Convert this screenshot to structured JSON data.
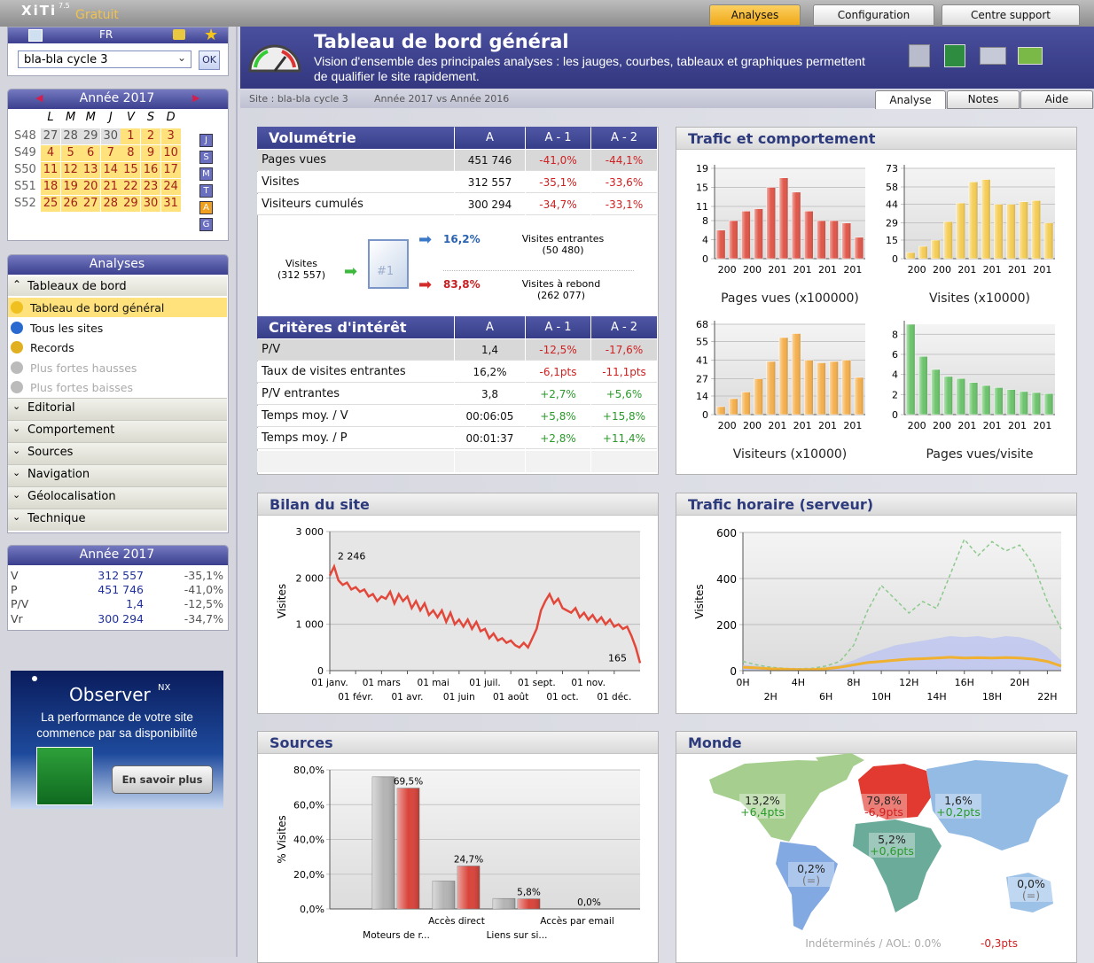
{
  "topbar": {
    "logo": "XiTi",
    "version": "7.5",
    "edition": "Gratuit",
    "tabs": [
      "Analyses",
      "Configuration",
      "Centre support"
    ]
  },
  "site_selector": {
    "lang": "FR",
    "site": "bla-bla cycle 3",
    "button": "OK"
  },
  "calendar": {
    "title": "Année 2017",
    "days": [
      "L",
      "M",
      "M",
      "J",
      "V",
      "S",
      "D"
    ],
    "weeks": [
      {
        "label": "S48",
        "days": [
          27,
          28,
          29,
          30,
          1,
          2,
          3
        ]
      },
      {
        "label": "S49",
        "days": [
          4,
          5,
          6,
          7,
          8,
          9,
          10
        ]
      },
      {
        "label": "S50",
        "days": [
          11,
          12,
          13,
          14,
          15,
          16,
          17
        ]
      },
      {
        "label": "S51",
        "days": [
          18,
          19,
          20,
          21,
          22,
          23,
          24
        ]
      },
      {
        "label": "S52",
        "days": [
          25,
          26,
          27,
          28,
          29,
          30,
          31
        ]
      }
    ],
    "periods": [
      "J",
      "S",
      "M",
      "T",
      "A",
      "G"
    ]
  },
  "menu": {
    "title": "Analyses",
    "open_section": "Tableaux de bord",
    "items": [
      "Tableau de bord général",
      "Tous les sites",
      "Records",
      "Plus fortes hausses",
      "Plus fortes baisses"
    ],
    "sections": [
      "Editorial",
      "Comportement",
      "Sources",
      "Navigation",
      "Géolocalisation",
      "Technique"
    ]
  },
  "summary": {
    "title": "Année 2017",
    "rows": [
      [
        "V",
        "312 557",
        "-35,1%"
      ],
      [
        "P",
        "451 746",
        "-41,0%"
      ],
      [
        "P/V",
        "1,4",
        "-12,5%"
      ],
      [
        "Vr",
        "300 294",
        "-34,7%"
      ]
    ]
  },
  "ad": {
    "brand": "Observer",
    "brand_sup": "NX",
    "text": "La performance de votre site commence par sa disponibilité",
    "button": "En savoir plus"
  },
  "header": {
    "title": "Tableau de bord général",
    "subtitle": "Vision d'ensemble des principales analyses : les jauges, courbes, tableaux et graphiques permettent de qualifier le site rapidement.",
    "site": "Site : bla-bla cycle 3",
    "period": "Année 2017 vs Année 2016",
    "tabs": [
      "Analyse",
      "Notes",
      "Aide"
    ]
  },
  "volumetrie": {
    "header": [
      "Volumétrie",
      "A",
      "A - 1",
      "A - 2"
    ],
    "rows": [
      [
        "Pages vues",
        "451 746",
        "-41,0%",
        "-44,1%"
      ],
      [
        "Visites",
        "312 557",
        "-35,1%",
        "-33,6%"
      ],
      [
        "Visiteurs cumulés",
        "300 294",
        "-34,7%",
        "-33,1%"
      ]
    ]
  },
  "flow": {
    "source": "Visites",
    "source_count": "(312 557)",
    "page": "#1",
    "entering_pct": "16,2%",
    "entering": "Visites entrantes",
    "entering_count": "(50 480)",
    "bounce_pct": "83,8%",
    "bounce": "Visites à rebond",
    "bounce_count": "(262 077)"
  },
  "criteres": {
    "header": [
      "Critères d'intérêt",
      "A",
      "A - 1",
      "A - 2"
    ],
    "rows": [
      [
        "P/V",
        "1,4",
        "-12,5%",
        "-17,6%"
      ],
      [
        "Taux de visites entrantes",
        "16,2%",
        "-6,1pts",
        "-11,1pts"
      ],
      [
        "P/V entrantes",
        "3,8",
        "+2,7%",
        "+5,6%"
      ],
      [
        "Temps moy. / V",
        "00:06:05",
        "+5,8%",
        "+15,8%"
      ],
      [
        "Temps moy. / P",
        "00:01:37",
        "+2,8%",
        "+11,4%"
      ]
    ]
  },
  "trafic": {
    "title": "Trafic et comportement",
    "charts": [
      {
        "type": "bar",
        "label": "Pages vues (x100000)",
        "color": "#e0574a",
        "xlabels": [
          "200",
          "200",
          "201",
          "201",
          "201",
          "201"
        ],
        "ylim": [
          0,
          19
        ],
        "yticks": [
          0,
          4,
          8,
          11,
          15,
          19
        ],
        "values": [
          6,
          8,
          10,
          10.5,
          15,
          17,
          14,
          10,
          8,
          8,
          7.5,
          4.5
        ]
      },
      {
        "type": "bar",
        "label": "Visites (x10000)",
        "color": "#f5cd55",
        "xlabels": [
          "200",
          "200",
          "201",
          "201",
          "201",
          "201"
        ],
        "ylim": [
          0,
          73
        ],
        "yticks": [
          0,
          15,
          29,
          44,
          58,
          73
        ],
        "values": [
          5,
          10,
          15,
          30,
          45,
          62,
          64,
          44,
          44,
          46,
          47,
          29
        ]
      },
      {
        "type": "bar",
        "label": "Visiteurs (x10000)",
        "color": "#f5b04e",
        "xlabels": [
          "200",
          "200",
          "201",
          "201",
          "201",
          "201"
        ],
        "ylim": [
          0,
          68
        ],
        "yticks": [
          0,
          14,
          27,
          41,
          55,
          68
        ],
        "values": [
          6,
          12,
          17,
          27,
          40,
          58,
          61,
          41,
          39,
          40,
          41,
          28
        ]
      },
      {
        "type": "bar",
        "label": "Pages vues/visite",
        "color": "#6cc46c",
        "xlabels": [
          "200",
          "200",
          "201",
          "201",
          "201",
          "201"
        ],
        "ylim": [
          0,
          9
        ],
        "yticks": [
          0,
          2,
          4,
          6,
          8
        ],
        "values": [
          9,
          5.8,
          4.5,
          3.8,
          3.6,
          3.2,
          2.9,
          2.7,
          2.5,
          2.3,
          2.2,
          2.1
        ]
      }
    ]
  },
  "bilan": {
    "title": "Bilan du site",
    "type": "line",
    "ylabel": "Visites",
    "color": "#e2473a",
    "ylim": [
      0,
      3000
    ],
    "yticks": [
      0,
      {
        "value": 1000,
        "label": "1 000"
      },
      {
        "value": 2000,
        "label": "2 000"
      },
      {
        "value": 3000,
        "label": "3 000"
      }
    ],
    "months": [
      "01 janv.",
      "01 févr.",
      "01 mars",
      "01 avr.",
      "01 mai",
      "01 juin",
      "01 juil.",
      "01 août",
      "01 sept.",
      "01 oct.",
      "01 nov.",
      "01 déc."
    ],
    "values": [
      2050,
      2246,
      1950,
      1850,
      1900,
      1750,
      1800,
      1700,
      1750,
      1600,
      1650,
      1500,
      1600,
      1550,
      1700,
      1450,
      1650,
      1500,
      1600,
      1350,
      1500,
      1300,
      1450,
      1200,
      1300,
      1150,
      1300,
      1050,
      1250,
      1000,
      1100,
      950,
      1100,
      900,
      1050,
      850,
      900,
      700,
      800,
      650,
      700,
      600,
      650,
      550,
      500,
      600,
      500,
      700,
      900,
      1300,
      1500,
      1650,
      1450,
      1550,
      1350,
      1300,
      1250,
      1350,
      1150,
      1250,
      1100,
      1200,
      1050,
      1150,
      1000,
      1100,
      950,
      1000,
      900,
      950,
      750,
      500,
      165
    ],
    "max_label": "2 246",
    "last_label": "165"
  },
  "horaire": {
    "title": "Trafic horaire (serveur)",
    "type": "line",
    "ylabel": "Visites",
    "ylim": [
      0,
      600
    ],
    "yticks": [
      0,
      200,
      400,
      600
    ],
    "hours": [
      "0H",
      "2H",
      "4H",
      "6H",
      "8H",
      "10H",
      "12H",
      "14H",
      "16H",
      "18H",
      "20H",
      "22H"
    ],
    "series": [
      {
        "color": "#b9c3f3",
        "style": "area",
        "values": [
          25,
          20,
          15,
          10,
          10,
          10,
          15,
          25,
          45,
          70,
          90,
          110,
          120,
          130,
          140,
          150,
          145,
          150,
          140,
          150,
          145,
          130,
          100,
          45
        ]
      },
      {
        "color": "#8cc98c",
        "style": "dashed",
        "values": [
          40,
          25,
          15,
          10,
          8,
          10,
          20,
          40,
          110,
          260,
          370,
          310,
          250,
          300,
          270,
          420,
          570,
          500,
          560,
          520,
          545,
          460,
          300,
          180
        ]
      },
      {
        "color": "#f0b030",
        "style": "line",
        "values": [
          15,
          12,
          8,
          6,
          5,
          5,
          8,
          15,
          25,
          35,
          40,
          45,
          50,
          52,
          55,
          58,
          55,
          56,
          55,
          57,
          55,
          50,
          40,
          20
        ]
      }
    ]
  },
  "sources": {
    "title": "Sources",
    "type": "bar",
    "ylabel": "% Visites",
    "ylim": [
      0,
      80
    ],
    "yticks": [
      {
        "value": 0,
        "label": "0,0%"
      },
      {
        "value": 20,
        "label": "20,0%"
      },
      {
        "value": 40,
        "label": "40,0%"
      },
      {
        "value": 60,
        "label": "60,0%"
      },
      {
        "value": 80,
        "label": "80,0%"
      }
    ],
    "categories": [
      "Moteurs de r...",
      "Accès direct",
      "Liens sur si...",
      "Accès par email"
    ],
    "series": [
      {
        "color": "#b4b4b4",
        "values": [
          76,
          16,
          6,
          0
        ]
      },
      {
        "color": "#d9443a",
        "values": [
          69.5,
          24.7,
          5.8,
          0
        ],
        "value_labels": [
          "69,5%",
          "24,7%",
          "5,8%",
          "0,0%"
        ]
      }
    ]
  },
  "monde": {
    "title": "Monde",
    "regions": [
      {
        "pct": "13,2%",
        "delta": "+6,4pts",
        "color": "#a6cf8f"
      },
      {
        "pct": "79,8%",
        "delta": "-6,9pts",
        "color": "#e23a30"
      },
      {
        "pct": "1,6%",
        "delta": "+0,2pts",
        "color": "#93bbe4"
      },
      {
        "pct": "5,2%",
        "delta": "+0,6pts",
        "color": "#6aab99"
      },
      {
        "pct": "0,2%",
        "delta": "(=)",
        "color": "#82a9e2"
      },
      {
        "pct": "0,0%",
        "delta": "(=)",
        "color": "#9dc2e8"
      }
    ],
    "footer": "Indéterminés / AOL: 0.0%",
    "footer_delta": "-0,3pts"
  }
}
